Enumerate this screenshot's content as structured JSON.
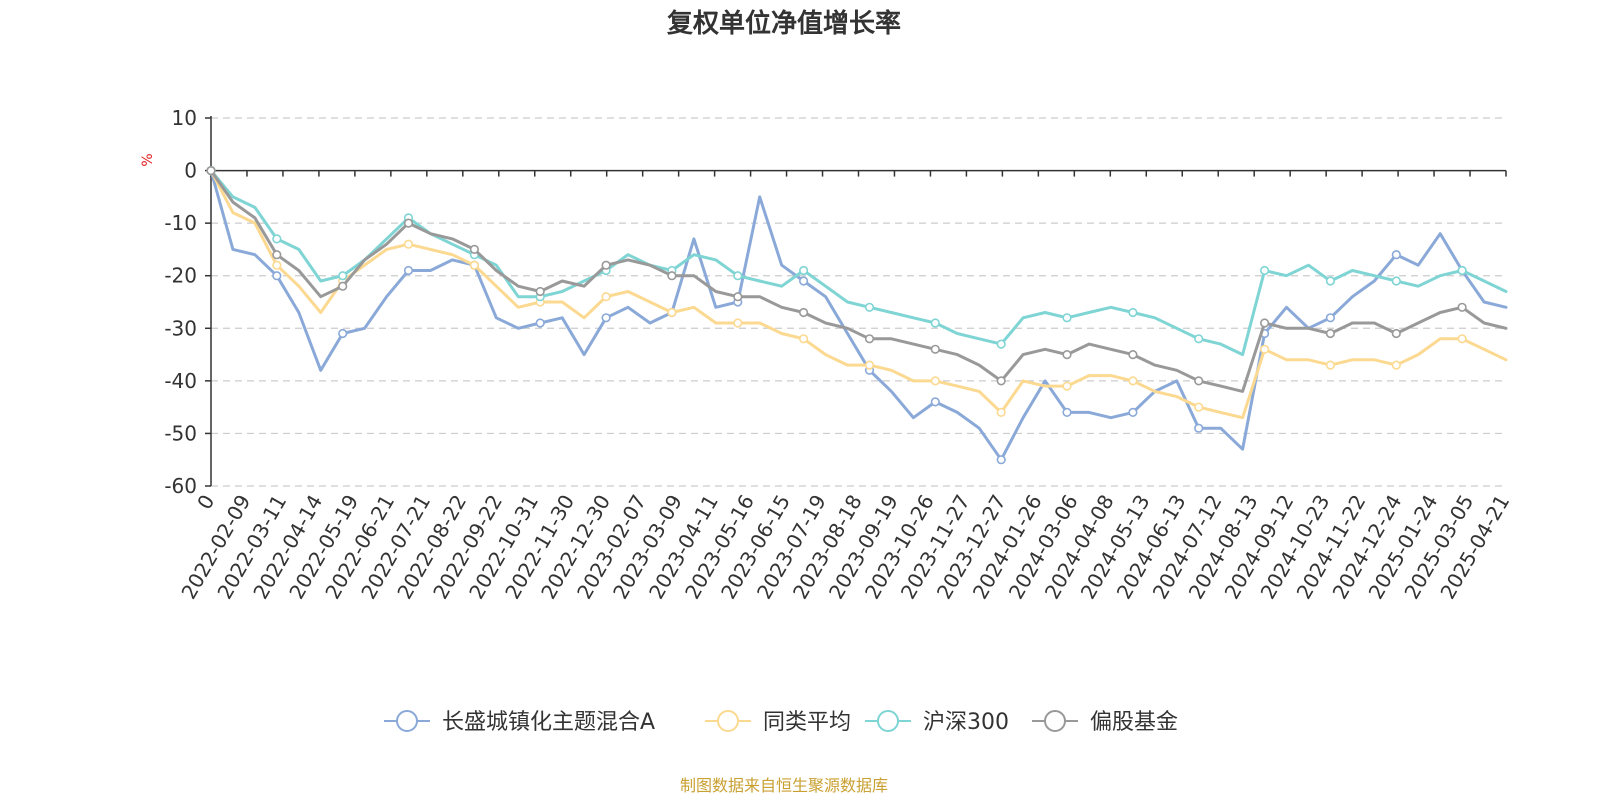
{
  "chart_data": {
    "type": "line",
    "title": "复权单位净值增长率",
    "ylabel": "%",
    "ylim": [
      -60,
      10
    ],
    "yticks": [
      "10",
      "0",
      "-10",
      "-20",
      "-30",
      "-40",
      "-50",
      "-60"
    ],
    "x_start_label": "0",
    "x_tick_labels": [
      "2022-02-09",
      "2022-03-11",
      "2022-04-14",
      "2022-05-19",
      "2022-06-21",
      "2022-07-21",
      "2022-08-22",
      "2022-09-22",
      "2022-10-31",
      "2022-11-30",
      "2022-12-30",
      "2023-02-07",
      "2023-03-09",
      "2023-04-11",
      "2023-05-16",
      "2023-06-15",
      "2023-07-19",
      "2023-08-18",
      "2023-09-19",
      "2023-10-26",
      "2023-11-27",
      "2023-12-27",
      "2024-01-26",
      "2024-03-06",
      "2024-04-08",
      "2024-05-13",
      "2024-06-13",
      "2024-07-12",
      "2024-08-13",
      "2024-09-12",
      "2024-10-23",
      "2024-11-22",
      "2024-12-24",
      "2025-01-24",
      "2025-03-05",
      "2025-04-21"
    ],
    "grid": "horizontal-dashed",
    "legend_position": "bottom",
    "series": [
      {
        "name": "长盛城镇化主题混合A",
        "color": "#8aa9d8",
        "values": [
          0,
          -15,
          -16,
          -20,
          -27,
          -38,
          -31,
          -30,
          -24,
          -19,
          -19,
          -17,
          -18,
          -28,
          -30,
          -29,
          -28,
          -35,
          -28,
          -26,
          -29,
          -27,
          -13,
          -26,
          -25,
          -5,
          -18,
          -21,
          -24,
          -31,
          -38,
          -42,
          -47,
          -44,
          -46,
          -49,
          -55,
          -47,
          -40,
          -46,
          -46,
          -47,
          -46,
          -42,
          -40,
          -49,
          -49,
          -53,
          -31,
          -26,
          -30,
          -28,
          -24,
          -21,
          -16,
          -18,
          -12,
          -19,
          -25,
          -26
        ]
      },
      {
        "name": "同类平均",
        "color": "#fcd991",
        "values": [
          0,
          -8,
          -10,
          -18,
          -22,
          -27,
          -21,
          -18,
          -15,
          -14,
          -15,
          -16,
          -18,
          -22,
          -26,
          -25,
          -25,
          -28,
          -24,
          -23,
          -25,
          -27,
          -26,
          -29,
          -29,
          -29,
          -31,
          -32,
          -35,
          -37,
          -37,
          -38,
          -40,
          -40,
          -41,
          -42,
          -46,
          -40,
          -41,
          -41,
          -39,
          -39,
          -40,
          -42,
          -43,
          -45,
          -46,
          -47,
          -34,
          -36,
          -36,
          -37,
          -36,
          -36,
          -37,
          -35,
          -32,
          -32,
          -34,
          -36
        ]
      },
      {
        "name": "沪深300",
        "color": "#7fd4d4",
        "values": [
          0,
          -5,
          -7,
          -13,
          -15,
          -21,
          -20,
          -17,
          -13,
          -9,
          -12,
          -14,
          -16,
          -18,
          -24,
          -24,
          -23,
          -21,
          -19,
          -16,
          -18,
          -19,
          -16,
          -17,
          -20,
          -21,
          -22,
          -19,
          -22,
          -25,
          -26,
          -27,
          -28,
          -29,
          -31,
          -32,
          -33,
          -28,
          -27,
          -28,
          -27,
          -26,
          -27,
          -28,
          -30,
          -32,
          -33,
          -35,
          -19,
          -20,
          -18,
          -21,
          -19,
          -20,
          -21,
          -22,
          -20,
          -19,
          -21,
          -23
        ]
      },
      {
        "name": "偏股基金",
        "color": "#999999",
        "values": [
          0,
          -6,
          -9,
          -16,
          -19,
          -24,
          -22,
          -17,
          -14,
          -10,
          -12,
          -13,
          -15,
          -19,
          -22,
          -23,
          -21,
          -22,
          -18,
          -17,
          -18,
          -20,
          -20,
          -23,
          -24,
          -24,
          -26,
          -27,
          -29,
          -30,
          -32,
          -32,
          -33,
          -34,
          -35,
          -37,
          -40,
          -35,
          -34,
          -35,
          -33,
          -34,
          -35,
          -37,
          -38,
          -40,
          -41,
          -42,
          -29,
          -30,
          -30,
          -31,
          -29,
          -29,
          -31,
          -29,
          -27,
          -26,
          -29,
          -30
        ]
      }
    ]
  },
  "legend": {
    "items": [
      "长盛城镇化主题混合A",
      "同类平均",
      "沪深300",
      "偏股基金"
    ]
  },
  "source_text": "制图数据来自恒生聚源数据库"
}
